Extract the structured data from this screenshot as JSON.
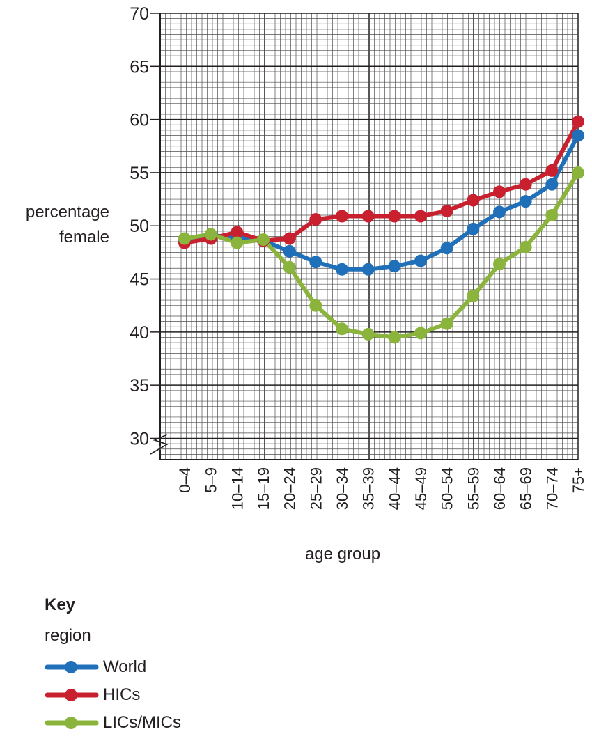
{
  "chart_data": {
    "type": "line",
    "categories": [
      "0–4",
      "5–9",
      "10–14",
      "15–19",
      "20–24",
      "25–29",
      "30–34",
      "35–39",
      "40–44",
      "45–49",
      "50–54",
      "55–59",
      "60–64",
      "65–69",
      "70–74",
      "75+"
    ],
    "series": [
      {
        "name": "World",
        "color": "#1f70b8",
        "values": [
          48.6,
          49.1,
          48.9,
          48.6,
          47.6,
          46.6,
          45.9,
          45.9,
          46.2,
          46.7,
          47.9,
          49.7,
          51.3,
          52.3,
          53.9,
          58.5
        ]
      },
      {
        "name": "HICs",
        "color": "#c8202f",
        "values": [
          48.4,
          48.8,
          49.4,
          48.6,
          48.8,
          50.6,
          50.9,
          50.9,
          50.9,
          50.9,
          51.4,
          52.4,
          53.2,
          53.9,
          55.2,
          59.8
        ]
      },
      {
        "name": "LICs/MICs",
        "color": "#8ab43c",
        "values": [
          48.8,
          49.2,
          48.4,
          48.7,
          46.1,
          42.5,
          40.3,
          39.8,
          39.5,
          39.9,
          40.8,
          43.4,
          46.4,
          48.0,
          51.0,
          55.0
        ]
      }
    ],
    "ylabel": [
      "percentage",
      "female"
    ],
    "xlabel": "age group",
    "ylim": [
      28,
      70
    ],
    "yticks": [
      30,
      35,
      40,
      45,
      50,
      55,
      60,
      65,
      70
    ],
    "grid": true,
    "axis_break": true
  },
  "key": {
    "title": "Key",
    "subtitle": "region"
  }
}
